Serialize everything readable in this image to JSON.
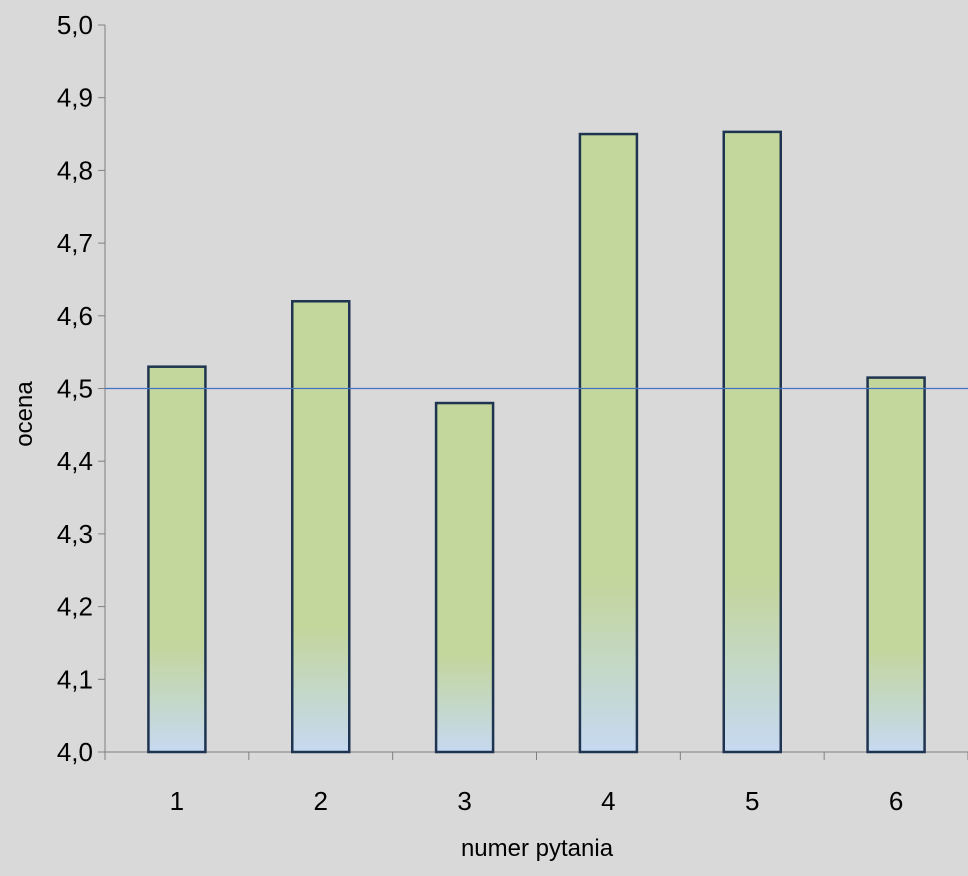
{
  "chart_data": {
    "type": "bar",
    "categories": [
      "1",
      "2",
      "3",
      "4",
      "5",
      "6"
    ],
    "values": [
      4.53,
      4.62,
      4.48,
      4.85,
      4.853,
      4.515
    ],
    "xlabel": "numer pytania",
    "ylabel": "ocena",
    "ylim": [
      4.0,
      5.0
    ],
    "yticks": [
      "4,0",
      "4,1",
      "4,2",
      "4,3",
      "4,4",
      "4,5",
      "4,6",
      "4,7",
      "4,8",
      "4,9",
      "5,0"
    ],
    "reference_line": 4.5,
    "grid": false,
    "legend": "none",
    "colors": {
      "background": "#d9d9d9",
      "bar_top": "#c3d69b",
      "bar_bottom": "#c6d9f1",
      "bar_border": "#1f3450",
      "reference_line": "#4472c4",
      "axis": "#808080"
    }
  }
}
